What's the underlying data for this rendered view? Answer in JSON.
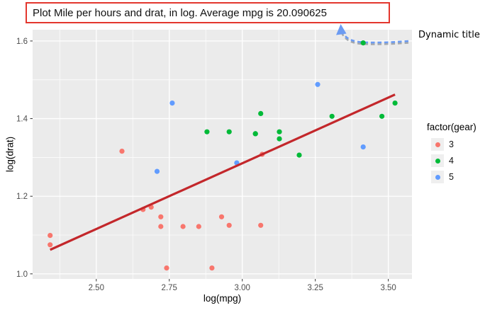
{
  "title_box": {
    "text": "Plot Mile per hours and drat, in log. Average mpg is 20.090625",
    "border_color": "#e3372e"
  },
  "annotation": {
    "label": "Dynamic title",
    "arrow_color": "#6c9bf2",
    "arrow_shadow_color": "#a4a8ac"
  },
  "legend": {
    "title": "factor(gear)",
    "items": [
      {
        "label": "3",
        "color": "#F8766D"
      },
      {
        "label": "4",
        "color": "#00BA38"
      },
      {
        "label": "5",
        "color": "#619CFF"
      }
    ]
  },
  "colors": {
    "panel_bg": "#EBEBEB",
    "grid_major": "#FFFFFF",
    "grid_minor": "#F7F7F7",
    "tick_mark": "#333333",
    "tick_label": "#4D4D4D",
    "trend_line": "#C3272B"
  },
  "chart_data": {
    "type": "scatter",
    "xlabel": "log(mpg)",
    "ylabel": "log(drat)",
    "xlim": [
      2.282,
      3.581
    ],
    "ylim": [
      0.987,
      1.629
    ],
    "x_ticks": [
      2.5,
      2.75,
      3.0,
      3.25,
      3.5
    ],
    "x_tick_labels": [
      "2.50",
      "2.75",
      "3.00",
      "3.25",
      "3.50"
    ],
    "y_ticks": [
      1.0,
      1.2,
      1.4,
      1.6
    ],
    "y_tick_labels": [
      "1.0",
      "1.2",
      "1.4",
      "1.6"
    ],
    "x_minor_ticks": [
      2.375,
      2.625,
      2.875,
      3.125,
      3.375
    ],
    "y_minor_ticks": [
      1.1,
      1.3,
      1.5
    ],
    "grid": true,
    "legend_position": "right",
    "series": [
      {
        "name": "3",
        "color": "#F8766D",
        "points": [
          [
            2.342,
            1.075
          ],
          [
            2.342,
            1.099
          ],
          [
            2.588,
            1.316
          ],
          [
            2.66,
            1.166
          ],
          [
            2.688,
            1.172
          ],
          [
            2.721,
            1.122
          ],
          [
            2.721,
            1.147
          ],
          [
            2.741,
            1.015
          ],
          [
            2.797,
            1.122
          ],
          [
            2.851,
            1.122
          ],
          [
            2.896,
            1.015
          ],
          [
            2.929,
            1.147
          ],
          [
            2.955,
            1.125
          ],
          [
            3.063,
            1.125
          ],
          [
            3.068,
            1.308
          ]
        ]
      },
      {
        "name": "4",
        "color": "#00BA38",
        "points": [
          [
            2.879,
            1.366
          ],
          [
            2.955,
            1.366
          ],
          [
            3.045,
            1.361
          ],
          [
            3.045,
            1.361
          ],
          [
            3.063,
            1.413
          ],
          [
            3.127,
            1.348
          ],
          [
            3.127,
            1.366
          ],
          [
            3.195,
            1.306
          ],
          [
            3.307,
            1.406
          ],
          [
            3.414,
            1.595
          ],
          [
            3.478,
            1.406
          ],
          [
            3.523,
            1.44
          ]
        ]
      },
      {
        "name": "5",
        "color": "#619CFF",
        "points": [
          [
            2.708,
            1.264
          ],
          [
            2.76,
            1.44
          ],
          [
            2.981,
            1.286
          ],
          [
            3.258,
            1.488
          ],
          [
            3.414,
            1.327
          ]
        ]
      }
    ],
    "trend_line": {
      "x1": 2.342,
      "y1": 1.062,
      "x2": 3.523,
      "y2": 1.462,
      "color": "#C3272B"
    }
  }
}
